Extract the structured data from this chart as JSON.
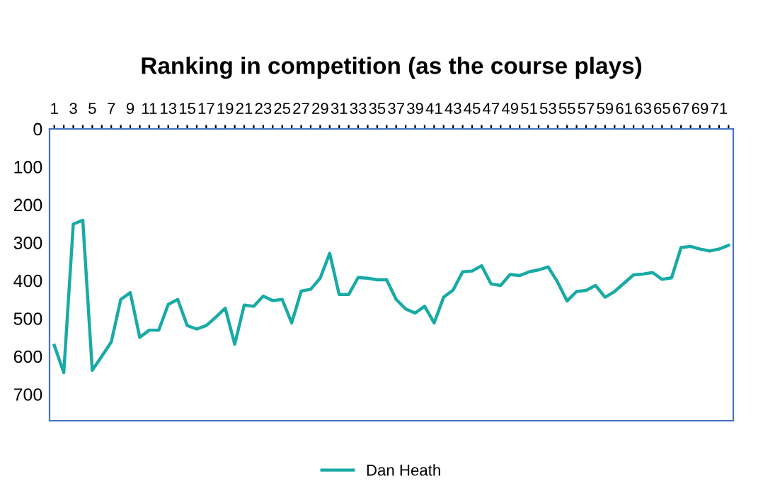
{
  "chart_data": {
    "type": "line",
    "title": "Ranking in competition (as the course plays)",
    "categories": [
      "1",
      null,
      "3",
      null,
      "5",
      null,
      "7",
      null,
      "9",
      null,
      "11",
      null,
      "13",
      null,
      "15",
      null,
      "17",
      null,
      "19",
      null,
      "21",
      null,
      "23",
      null,
      "25",
      null,
      "27",
      null,
      "29",
      null,
      "31",
      null,
      "33",
      null,
      "35",
      null,
      "37",
      null,
      "39",
      null,
      "41",
      null,
      "43",
      null,
      "45",
      null,
      "47",
      null,
      "49",
      null,
      "51",
      null,
      "53",
      null,
      "55",
      null,
      "57",
      null,
      "59",
      null,
      "61",
      null,
      "63",
      null,
      "65",
      null,
      "67",
      null,
      "69",
      null,
      "71",
      null
    ],
    "series": [
      {
        "name": "Dan Heath",
        "color": "#19aaa6",
        "values": [
          571,
          643,
          251,
          241,
          637,
          600,
          562,
          450,
          432,
          550,
          531,
          531,
          463,
          450,
          519,
          528,
          519,
          497,
          473,
          568,
          465,
          468,
          441,
          453,
          450,
          512,
          428,
          423,
          394,
          328,
          437,
          437,
          392,
          394,
          398,
          398,
          450,
          475,
          486,
          468,
          512,
          444,
          425,
          377,
          375,
          361,
          409,
          413,
          384,
          387,
          377,
          372,
          364,
          404,
          454,
          429,
          426,
          413,
          444,
          429,
          407,
          385,
          383,
          379,
          397,
          393,
          313,
          310,
          317,
          322,
          317,
          307
        ]
      }
    ],
    "ylim": [
      770,
      0
    ],
    "yticks": [
      0,
      100,
      200,
      300,
      400,
      500,
      600,
      700
    ],
    "grid": false,
    "legend": "bottom",
    "marker": "none",
    "line_style": "solid"
  }
}
